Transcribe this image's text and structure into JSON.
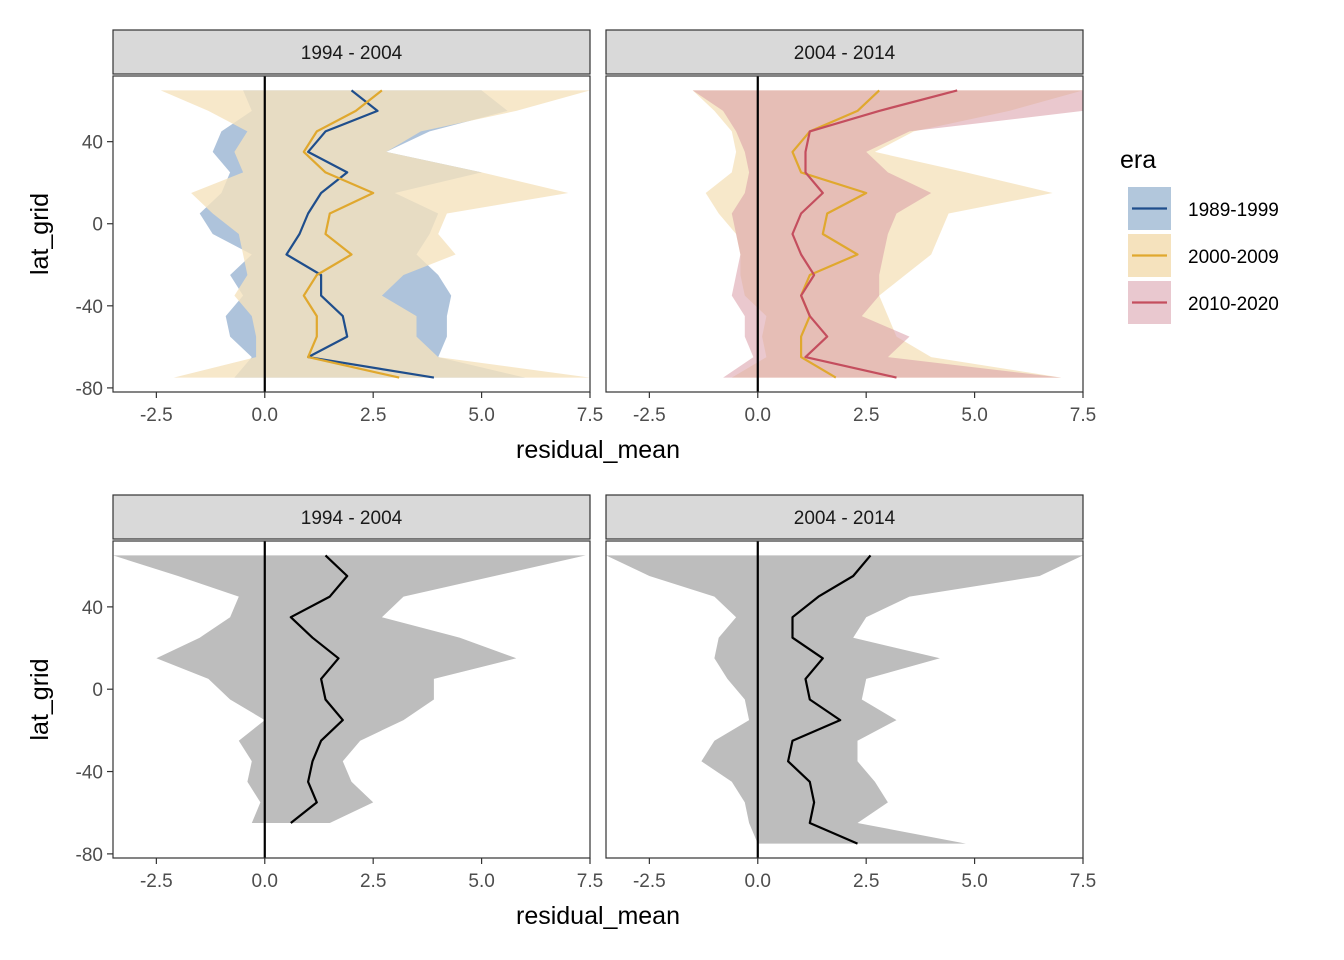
{
  "chart_data": [
    {
      "type": "line",
      "plot": "top",
      "xlabel": "residual_mean",
      "ylabel": "lat_grid",
      "xlim": [
        -3.5,
        7.5
      ],
      "ylim": [
        -82,
        72
      ],
      "x_ticks": [
        -2.5,
        0.0,
        2.5,
        5.0,
        7.5
      ],
      "x_tick_labels": [
        "-2.5",
        "0.0",
        "2.5",
        "5.0",
        "7.5"
      ],
      "y_ticks": [
        -80,
        -40,
        0,
        40
      ],
      "y_tick_labels": [
        "-80",
        "-40",
        "0",
        "40"
      ],
      "vline_x": 0,
      "legend": {
        "title": "era",
        "placement": "right",
        "entries": [
          {
            "label": "1989-1999",
            "line_color": "#1f4e8c",
            "fill_color": "#b2c7dc"
          },
          {
            "label": "2000-2009",
            "line_color": "#e0a82e",
            "fill_color": "#f5e2bd"
          },
          {
            "label": "2010-2020",
            "line_color": "#c44e5e",
            "fill_color": "#e9c8cf"
          }
        ]
      },
      "panels": [
        {
          "strip": "1994 - 2004",
          "series": [
            {
              "era": "1989-1999",
              "line_color": "#1f4e8c",
              "fill_color": "#9ab4d2",
              "fill_opacity": 0.8,
              "lat": [
                65,
                55,
                45,
                35,
                25,
                15,
                5,
                -5,
                -15,
                -25,
                -35,
                -45,
                -55,
                -65,
                -75
              ],
              "mean": [
                2.0,
                2.6,
                1.4,
                1.0,
                1.9,
                1.3,
                1.0,
                0.8,
                0.5,
                1.3,
                1.3,
                1.8,
                1.9,
                1.0,
                3.9
              ],
              "lower": [
                -0.5,
                -0.3,
                -1.0,
                -1.2,
                -0.8,
                -1.0,
                -1.5,
                -1.2,
                -0.3,
                -0.8,
                -0.5,
                -0.9,
                -0.8,
                -0.3,
                -0.7
              ],
              "upper": [
                5.0,
                5.6,
                3.8,
                2.8,
                5.0,
                3.0,
                4.0,
                3.8,
                3.5,
                4.0,
                4.3,
                4.2,
                4.2,
                4.0,
                6.0
              ]
            },
            {
              "era": "2000-2009",
              "line_color": "#e0a82e",
              "fill_color": "#f5e2bd",
              "fill_opacity": 0.8,
              "lat": [
                65,
                55,
                45,
                35,
                25,
                15,
                5,
                -5,
                -15,
                -25,
                -35,
                -45,
                -55,
                -65,
                -75
              ],
              "mean": [
                2.7,
                2.1,
                1.2,
                0.9,
                1.4,
                2.5,
                1.5,
                1.4,
                2.0,
                1.2,
                0.9,
                1.2,
                1.2,
                1.0,
                3.1
              ],
              "lower": [
                -2.4,
                -1.3,
                -0.4,
                -0.7,
                -0.5,
                -1.7,
                -1.2,
                -0.6,
                -0.5,
                -0.4,
                -0.7,
                -0.3,
                -0.2,
                -0.2,
                -2.1
              ],
              "upper": [
                7.5,
                5.8,
                3.6,
                2.8,
                5.0,
                7.0,
                4.2,
                4.0,
                4.4,
                3.2,
                2.7,
                3.5,
                3.5,
                4.0,
                7.5
              ]
            }
          ]
        },
        {
          "strip": "2004 - 2014",
          "series": [
            {
              "era": "2000-2009",
              "line_color": "#e0a82e",
              "fill_color": "#f5e2bd",
              "fill_opacity": 0.8,
              "lat": [
                65,
                55,
                45,
                35,
                25,
                15,
                5,
                -5,
                -15,
                -25,
                -35,
                -45,
                -55,
                -65,
                -75
              ],
              "mean": [
                2.8,
                2.3,
                1.2,
                0.8,
                1.0,
                2.5,
                1.6,
                1.5,
                2.3,
                1.2,
                1.0,
                1.2,
                1.0,
                1.0,
                1.8
              ],
              "lower": [
                -1.5,
                -1.0,
                -0.6,
                -0.5,
                -0.6,
                -1.2,
                -0.9,
                -0.5,
                -0.4,
                -0.4,
                -0.3,
                0.2,
                0.1,
                0.2,
                -0.6
              ],
              "upper": [
                7.5,
                5.8,
                3.6,
                2.7,
                4.8,
                6.8,
                4.4,
                4.2,
                4.0,
                3.4,
                2.8,
                3.0,
                3.2,
                4.0,
                7.0
              ]
            },
            {
              "era": "2010-2020",
              "line_color": "#c44e5e",
              "fill_color": "#d99aa5",
              "fill_opacity": 0.55,
              "lat": [
                65,
                55,
                45,
                35,
                25,
                15,
                5,
                -5,
                -15,
                -25,
                -35,
                -45,
                -55,
                -65,
                -75
              ],
              "mean": [
                4.6,
                2.8,
                1.2,
                1.1,
                1.1,
                1.5,
                1.0,
                0.8,
                1.0,
                1.3,
                1.0,
                1.2,
                1.6,
                1.1,
                3.2
              ],
              "lower": [
                -1.5,
                -0.8,
                -0.5,
                -0.3,
                -0.2,
                -0.3,
                -0.6,
                -0.5,
                -0.4,
                -0.5,
                -0.6,
                -0.3,
                -0.3,
                -0.1,
                -0.8
              ],
              "upper": [
                7.5,
                7.5,
                3.5,
                2.5,
                3.0,
                4.0,
                3.2,
                3.0,
                2.9,
                2.8,
                2.8,
                2.4,
                3.5,
                3.0,
                7.0
              ]
            }
          ]
        }
      ]
    },
    {
      "type": "line",
      "plot": "bottom",
      "xlabel": "residual_mean",
      "ylabel": "lat_grid",
      "xlim": [
        -3.5,
        7.5
      ],
      "ylim": [
        -82,
        72
      ],
      "x_ticks": [
        -2.5,
        0.0,
        2.5,
        5.0,
        7.5
      ],
      "x_tick_labels": [
        "-2.5",
        "0.0",
        "2.5",
        "5.0",
        "7.5"
      ],
      "y_ticks": [
        -80,
        -40,
        0,
        40
      ],
      "y_tick_labels": [
        "-80",
        "-40",
        "0",
        "40"
      ],
      "vline_x": 0,
      "panels": [
        {
          "strip": "1994 - 2004",
          "series": [
            {
              "line_color": "#000000",
              "fill_color": "#bdbdbd",
              "fill_opacity": 1,
              "lat": [
                65,
                55,
                45,
                35,
                25,
                15,
                5,
                -5,
                -15,
                -25,
                -35,
                -45,
                -55,
                -65
              ],
              "mean": [
                1.4,
                1.9,
                1.5,
                0.6,
                1.1,
                1.7,
                1.3,
                1.4,
                1.8,
                1.3,
                1.1,
                1.0,
                1.2,
                0.6
              ],
              "lower": [
                -3.5,
                -2.0,
                -0.6,
                -0.8,
                -1.5,
                -2.5,
                -1.3,
                -0.8,
                0.0,
                -0.6,
                -0.3,
                -0.4,
                -0.1,
                -0.3
              ],
              "upper": [
                7.4,
                5.3,
                3.2,
                2.7,
                4.5,
                5.8,
                3.9,
                3.9,
                3.2,
                2.2,
                1.8,
                2.0,
                2.5,
                1.5
              ]
            }
          ]
        },
        {
          "strip": "2004 - 2014",
          "series": [
            {
              "line_color": "#000000",
              "fill_color": "#bdbdbd",
              "fill_opacity": 1,
              "lat": [
                65,
                55,
                45,
                35,
                25,
                15,
                5,
                -5,
                -15,
                -25,
                -35,
                -45,
                -55,
                -65,
                -75
              ],
              "mean": [
                2.6,
                2.2,
                1.4,
                0.8,
                0.8,
                1.5,
                1.1,
                1.2,
                1.9,
                0.8,
                0.7,
                1.2,
                1.3,
                1.2,
                2.3
              ],
              "lower": [
                -3.5,
                -2.5,
                -1.0,
                -0.5,
                -0.9,
                -1.0,
                -0.7,
                -0.3,
                -0.2,
                -1.0,
                -1.3,
                -0.6,
                -0.3,
                -0.2,
                0.0
              ],
              "upper": [
                7.5,
                6.5,
                3.5,
                2.5,
                2.2,
                4.2,
                2.5,
                2.4,
                3.2,
                2.3,
                2.3,
                2.7,
                3.0,
                2.3,
                4.8
              ]
            }
          ]
        }
      ]
    }
  ]
}
